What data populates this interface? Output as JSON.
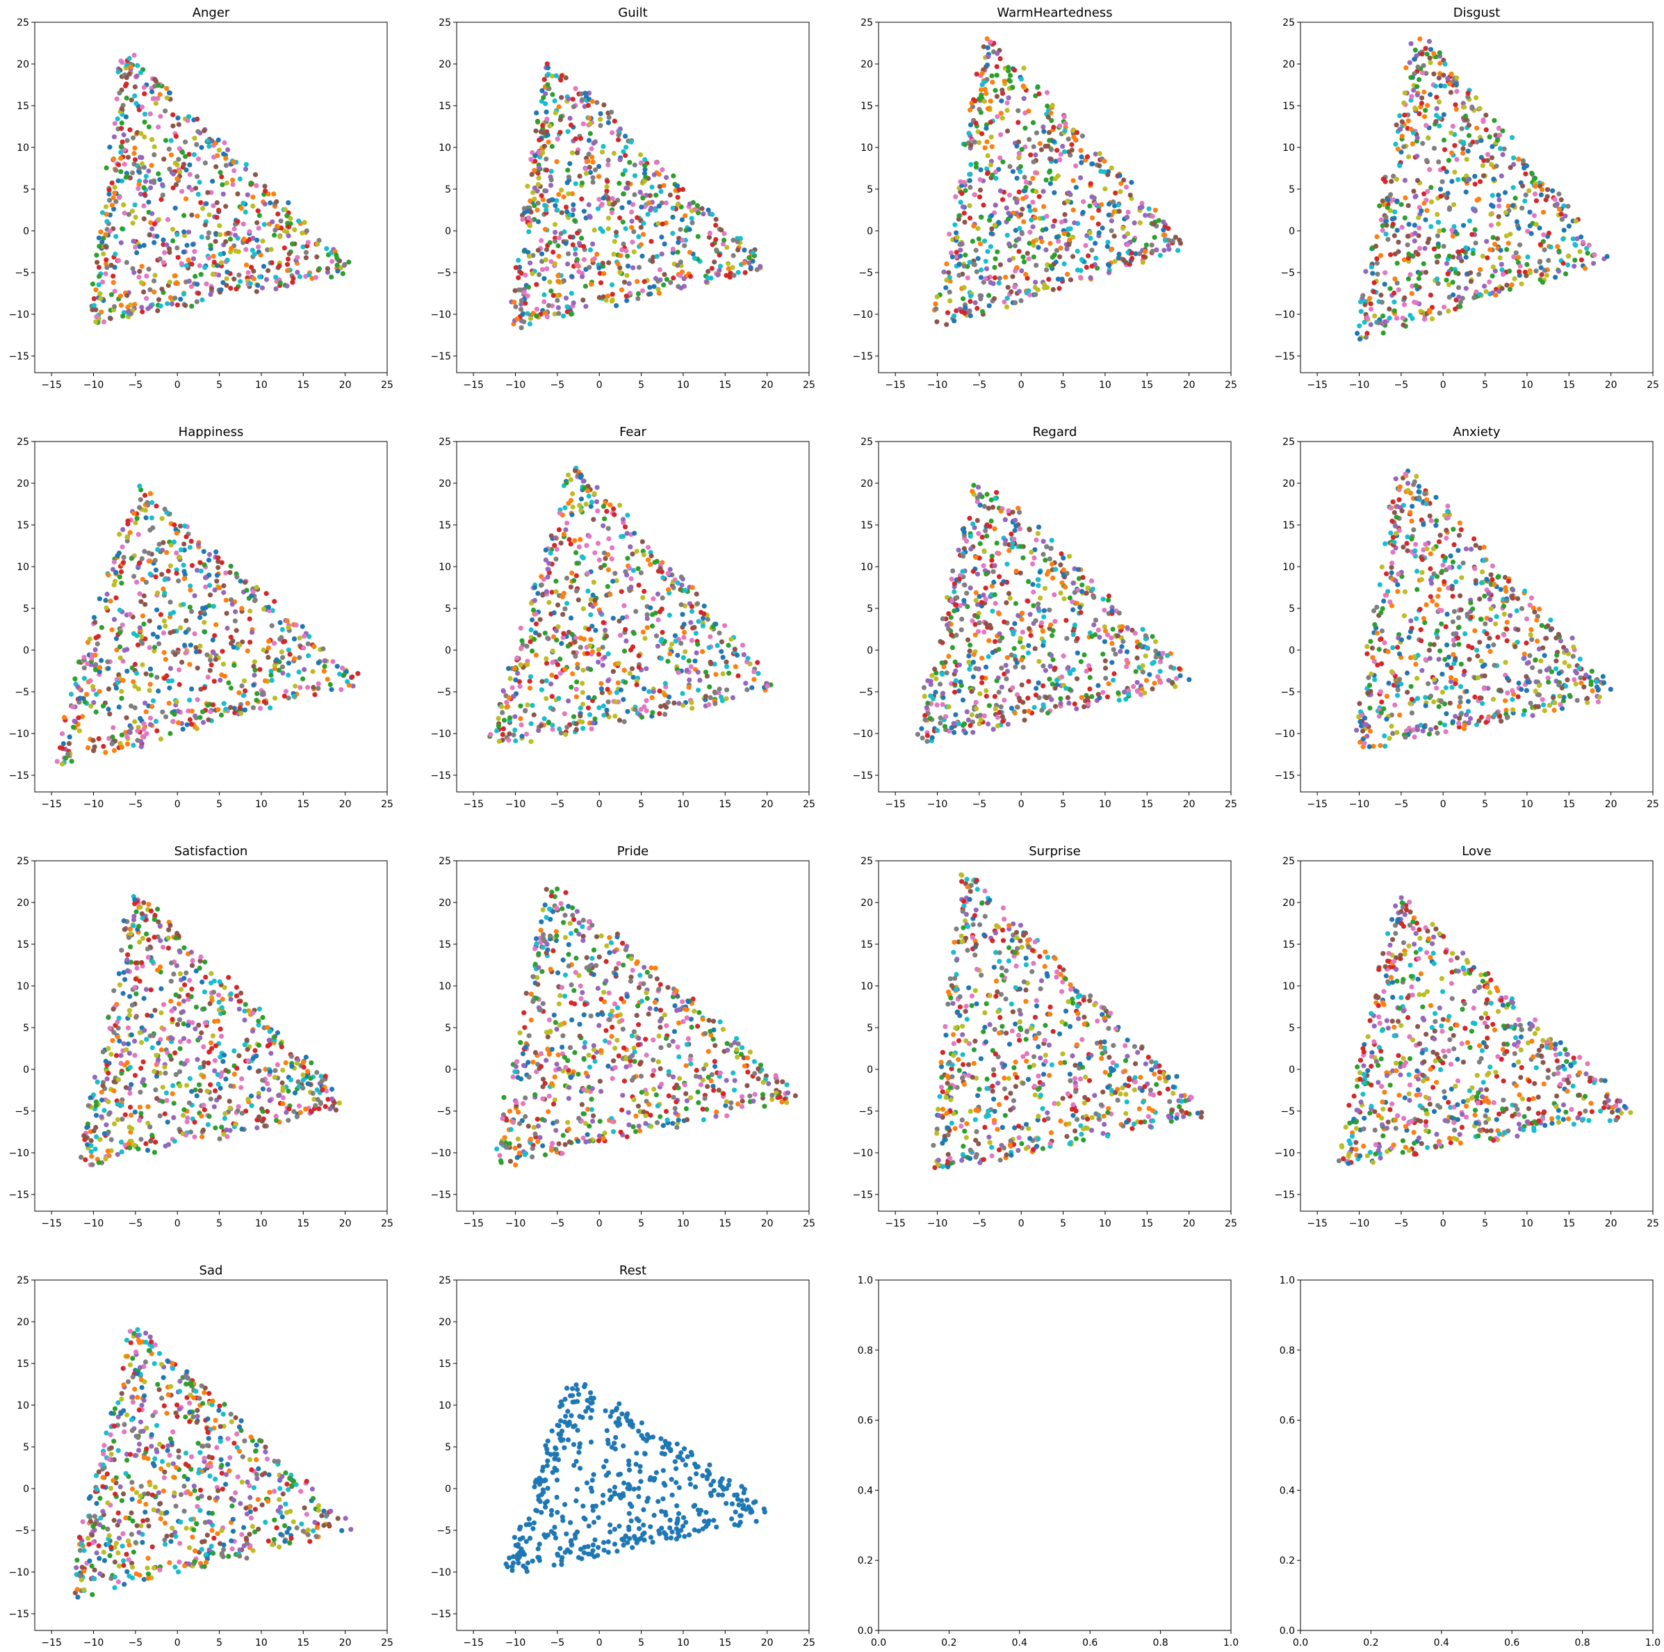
{
  "chart_data": {
    "type": "scatter",
    "series_colors": [
      "#1f77b4",
      "#ff7f0e",
      "#2ca02c",
      "#d62728",
      "#9467bd",
      "#8c564b",
      "#e377c2",
      "#7f7f7f",
      "#bcbd22",
      "#17becf"
    ],
    "xlim": [
      -17,
      25
    ],
    "ylim": [
      -17,
      25
    ],
    "xticks": [
      -15,
      -10,
      -5,
      0,
      5,
      10,
      15,
      20,
      25
    ],
    "yticks": [
      -15,
      -10,
      -5,
      0,
      5,
      10,
      15,
      20,
      25
    ],
    "empty_ticks": [
      0.0,
      0.2,
      0.4,
      0.6,
      0.8,
      1.0
    ],
    "panels": [
      {
        "title": "Anger",
        "apex": [
          -6,
          21
        ],
        "left": [
          -10,
          -10.5
        ],
        "right": [
          20,
          -4.5
        ],
        "n": 520,
        "seed": 11,
        "multi": true
      },
      {
        "title": "Guilt",
        "apex": [
          -6,
          20
        ],
        "left": [
          -10,
          -11
        ],
        "right": [
          19,
          -4
        ],
        "n": 520,
        "seed": 23,
        "multi": true
      },
      {
        "title": "WarmHeartedness",
        "apex": [
          -4,
          22.5
        ],
        "left": [
          -10,
          -11
        ],
        "right": [
          19,
          -1.5
        ],
        "n": 520,
        "seed": 37,
        "multi": true
      },
      {
        "title": "Disgust",
        "apex": [
          -3,
          23
        ],
        "left": [
          -10,
          -12.5
        ],
        "right": [
          19,
          -3
        ],
        "n": 520,
        "seed": 41,
        "multi": true
      },
      {
        "title": "Happiness",
        "apex": [
          -4.5,
          19
        ],
        "left": [
          -14.5,
          -13.5
        ],
        "right": [
          21,
          -3.5
        ],
        "n": 520,
        "seed": 53,
        "multi": true
      },
      {
        "title": "Fear",
        "apex": [
          -3,
          22
        ],
        "left": [
          -12.5,
          -11
        ],
        "right": [
          20.5,
          -4.5
        ],
        "n": 520,
        "seed": 61,
        "multi": true
      },
      {
        "title": "Regard",
        "apex": [
          -5,
          20
        ],
        "left": [
          -12,
          -10.5
        ],
        "right": [
          20,
          -3.5
        ],
        "n": 520,
        "seed": 73,
        "multi": true
      },
      {
        "title": "Anxiety",
        "apex": [
          -5,
          22
        ],
        "left": [
          -10,
          -11.5
        ],
        "right": [
          20,
          -5
        ],
        "n": 520,
        "seed": 83,
        "multi": true
      },
      {
        "title": "Satisfaction",
        "apex": [
          -5,
          20.5
        ],
        "left": [
          -11,
          -11
        ],
        "right": [
          20,
          -4
        ],
        "n": 520,
        "seed": 97,
        "multi": true
      },
      {
        "title": "Pride",
        "apex": [
          -5.5,
          21.5
        ],
        "left": [
          -12,
          -11
        ],
        "right": [
          23,
          -3
        ],
        "n": 520,
        "seed": 101,
        "multi": true
      },
      {
        "title": "Surprise",
        "apex": [
          -6.5,
          23
        ],
        "left": [
          -10,
          -11.5
        ],
        "right": [
          21.5,
          -5
        ],
        "n": 520,
        "seed": 113,
        "multi": true
      },
      {
        "title": "Love",
        "apex": [
          -5,
          20
        ],
        "left": [
          -12,
          -11
        ],
        "right": [
          22,
          -5
        ],
        "n": 520,
        "seed": 127,
        "multi": true
      },
      {
        "title": "Sad",
        "apex": [
          -5,
          19
        ],
        "left": [
          -12.5,
          -12.5
        ],
        "right": [
          20,
          -4.5
        ],
        "n": 520,
        "seed": 131,
        "multi": true
      },
      {
        "title": "Rest",
        "apex": [
          -3,
          12.5
        ],
        "left": [
          -10.5,
          -9.5
        ],
        "right": [
          20,
          -3
        ],
        "n": 260,
        "seed": 139,
        "multi": false
      },
      {
        "title": "",
        "empty": true
      },
      {
        "title": "",
        "empty": true
      }
    ]
  }
}
